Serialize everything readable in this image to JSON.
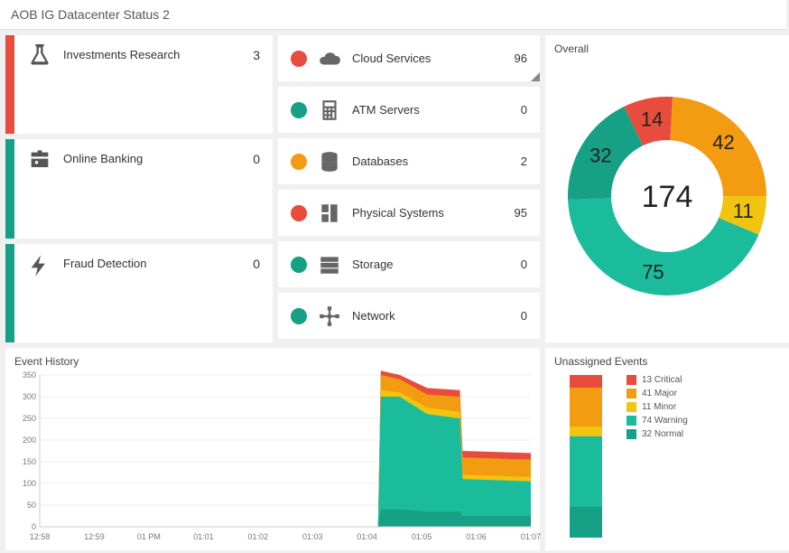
{
  "header": {
    "title": "AOB IG Datacenter Status 2"
  },
  "colors": {
    "critical": "#e74c3c",
    "major": "#f39c12",
    "minor": "#f1c40f",
    "warning": "#1abc9c",
    "normal": "#16a085",
    "text": "#333333",
    "bg": "#f0f0f0",
    "card": "#ffffff",
    "iconGray": "#666666"
  },
  "business": [
    {
      "icon": "flask",
      "label": "Investments Research",
      "count": 3,
      "barColor": "#e74c3c"
    },
    {
      "icon": "briefcase",
      "label": "Online Banking",
      "count": 0,
      "barColor": "#16a085"
    },
    {
      "icon": "bolt",
      "label": "Fraud Detection",
      "count": 0,
      "barColor": "#16a085"
    }
  ],
  "services": [
    {
      "icon": "cloud",
      "label": "Cloud Services",
      "count": 96,
      "dotColor": "#e74c3c",
      "corner": true
    },
    {
      "icon": "calculator",
      "label": "ATM Servers",
      "count": 0,
      "dotColor": "#16a085"
    },
    {
      "icon": "database",
      "label": "Databases",
      "count": 2,
      "dotColor": "#f39c12"
    },
    {
      "icon": "server",
      "label": "Physical Systems",
      "count": 95,
      "dotColor": "#e74c3c"
    },
    {
      "icon": "storage",
      "label": "Storage",
      "count": 0,
      "dotColor": "#16a085"
    },
    {
      "icon": "network",
      "label": "Network",
      "count": 0,
      "dotColor": "#16a085"
    }
  ],
  "overall": {
    "title": "Overall",
    "total": 174,
    "segments": [
      {
        "label": "Critical",
        "value": 14,
        "color": "#e74c3c"
      },
      {
        "label": "Major",
        "value": 42,
        "color": "#f39c12"
      },
      {
        "label": "Minor",
        "value": 11,
        "color": "#f1c40f"
      },
      {
        "label": "Warning",
        "value": 75,
        "color": "#1abc9c"
      },
      {
        "label": "Normal",
        "value": 32,
        "color": "#16a085"
      }
    ]
  },
  "history": {
    "title": "Event History",
    "yMax": 350,
    "yStep": 50,
    "xLabels": [
      "12:58",
      "12:59",
      "01 PM",
      "01:01",
      "01:02",
      "01:03",
      "01:04",
      "01:05",
      "01:06",
      "01:07"
    ],
    "seriesOrder": [
      "normal",
      "warning",
      "minor",
      "major",
      "critical"
    ],
    "seriesColors": {
      "normal": "#16a085",
      "warning": "#1abc9c",
      "minor": "#f1c40f",
      "major": "#f39c12",
      "critical": "#e74c3c"
    },
    "points": [
      {
        "x": 6.2,
        "normal": 0,
        "warning": 0,
        "minor": 0,
        "major": 0,
        "critical": 0
      },
      {
        "x": 6.25,
        "normal": 40,
        "warning": 300,
        "minor": 315,
        "major": 350,
        "critical": 360
      },
      {
        "x": 6.6,
        "normal": 40,
        "warning": 300,
        "minor": 310,
        "major": 340,
        "critical": 350
      },
      {
        "x": 7.1,
        "normal": 35,
        "warning": 260,
        "minor": 275,
        "major": 305,
        "critical": 320
      },
      {
        "x": 7.7,
        "normal": 35,
        "warning": 250,
        "minor": 265,
        "major": 300,
        "critical": 315
      },
      {
        "x": 7.75,
        "normal": 25,
        "warning": 110,
        "minor": 120,
        "major": 160,
        "critical": 175
      },
      {
        "x": 9.0,
        "normal": 25,
        "warning": 105,
        "minor": 115,
        "major": 155,
        "critical": 170
      }
    ]
  },
  "unassigned": {
    "title": "Unassigned Events",
    "legend": [
      {
        "label": "13 Critical",
        "color": "#e74c3c",
        "value": 13
      },
      {
        "label": "41 Major",
        "color": "#f39c12",
        "value": 41
      },
      {
        "label": "11 Minor",
        "color": "#f1c40f",
        "value": 11
      },
      {
        "label": "74 Warning",
        "color": "#1abc9c",
        "value": 74
      },
      {
        "label": "32 Normal",
        "color": "#16a085",
        "value": 32
      }
    ]
  }
}
